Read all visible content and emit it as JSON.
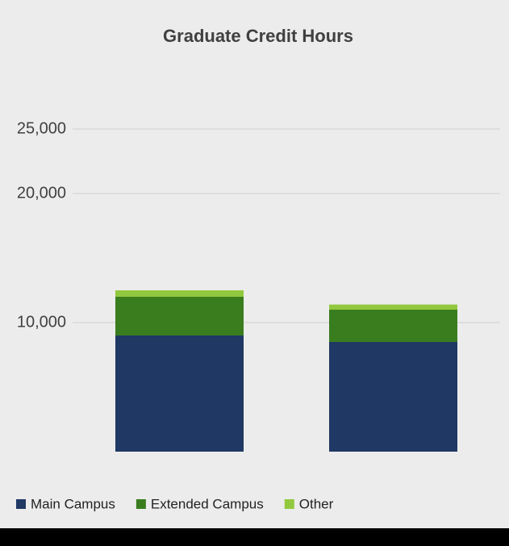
{
  "chart_data": {
    "type": "bar",
    "stacked": true,
    "title": "Graduate Credit Hours",
    "categories": [
      null,
      null
    ],
    "series": [
      {
        "name": "Main Campus",
        "color": "#1f3864",
        "values": [
          9000,
          8500
        ]
      },
      {
        "name": "Extended Campus",
        "color": "#3a7d1f",
        "values": [
          3000,
          2500
        ]
      },
      {
        "name": "Other",
        "color": "#92c83e",
        "values": [
          500,
          400
        ]
      }
    ],
    "ylim": [
      0,
      30000
    ],
    "yticks": [
      {
        "value": 10000,
        "label": "10,000"
      },
      {
        "value": 20000,
        "label": "20,000"
      },
      {
        "value": 25000,
        "label": "25,000"
      }
    ],
    "grid": true,
    "legend": "bottom"
  }
}
